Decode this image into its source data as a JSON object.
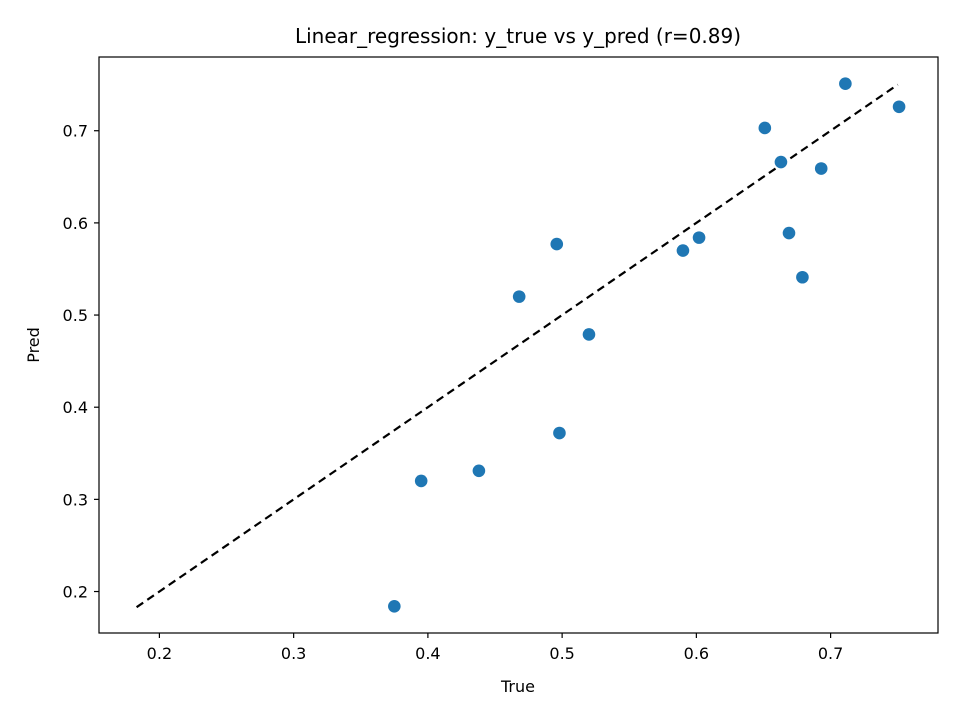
{
  "chart_data": {
    "type": "scatter",
    "title": "Linear_regression: y_true vs y_pred (r=0.89)",
    "xlabel": "True",
    "ylabel": "Pred",
    "xlim": [
      0.155,
      0.78
    ],
    "ylim": [
      0.155,
      0.78
    ],
    "xticks": [
      0.2,
      0.3,
      0.4,
      0.5,
      0.6,
      0.7
    ],
    "yticks": [
      0.2,
      0.3,
      0.4,
      0.5,
      0.6,
      0.7
    ],
    "grid": false,
    "point_color": "#1f77b4",
    "reference_line": {
      "from": [
        0.183,
        0.183
      ],
      "to": [
        0.75,
        0.75
      ],
      "style": "dashed",
      "color": "#000000"
    },
    "series": [
      {
        "points": [
          {
            "x": 0.375,
            "y": 0.184
          },
          {
            "x": 0.395,
            "y": 0.32
          },
          {
            "x": 0.438,
            "y": 0.331
          },
          {
            "x": 0.468,
            "y": 0.52
          },
          {
            "x": 0.496,
            "y": 0.577
          },
          {
            "x": 0.498,
            "y": 0.372
          },
          {
            "x": 0.52,
            "y": 0.479
          },
          {
            "x": 0.59,
            "y": 0.57
          },
          {
            "x": 0.602,
            "y": 0.584
          },
          {
            "x": 0.651,
            "y": 0.703
          },
          {
            "x": 0.663,
            "y": 0.666
          },
          {
            "x": 0.669,
            "y": 0.589
          },
          {
            "x": 0.679,
            "y": 0.541
          },
          {
            "x": 0.693,
            "y": 0.659
          },
          {
            "x": 0.711,
            "y": 0.751
          },
          {
            "x": 0.751,
            "y": 0.726
          }
        ]
      }
    ]
  }
}
